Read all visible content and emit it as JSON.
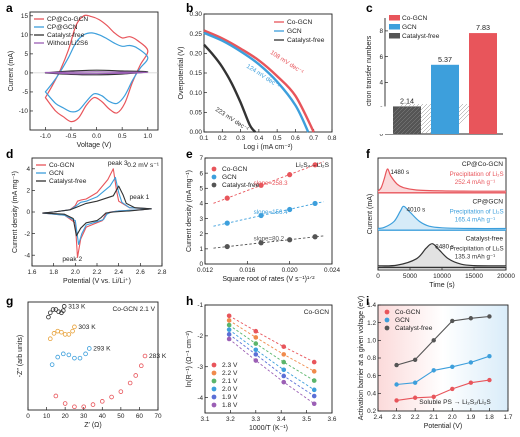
{
  "palette": {
    "red": "#e8555b",
    "blue": "#3d9fdc",
    "gray": "#555555",
    "dark": "#333333",
    "pink_fill": "#fadadb",
    "blue_fill": "#d6ebf8",
    "gray_fill": "#e2e2e2"
  },
  "chart_data": [
    {
      "panel": "a",
      "type": "line",
      "xlabel": "Voltage (V)",
      "ylabel": "Current (mA)",
      "xlim": [
        -1.3,
        1.2
      ],
      "ylim": [
        -15,
        16
      ],
      "xticks": [
        -1.0,
        -0.5,
        0.0,
        0.5,
        1.0
      ],
      "yticks": [
        -10,
        -5,
        0,
        5,
        10,
        15
      ],
      "legend_position": "top-left",
      "series": [
        {
          "name": "CP@Co-GCN",
          "color": "#e8555b",
          "closed": true,
          "x": [
            -1.0,
            -0.85,
            -0.7,
            -0.55,
            -0.4,
            -0.25,
            -0.1,
            0.05,
            0.2,
            0.35,
            0.5,
            0.65,
            0.8,
            1.0,
            0.85,
            0.7,
            0.55,
            0.4,
            0.25,
            0.1,
            -0.05,
            -0.2,
            -0.35,
            -0.5,
            -0.65,
            -0.8,
            -1.0
          ],
          "y": [
            -6.5,
            -3.0,
            1.0,
            6.0,
            12.5,
            15.0,
            14.8,
            14.0,
            12.5,
            10.5,
            9.2,
            9.5,
            8.5,
            5.8,
            2.0,
            -2.5,
            -8.0,
            -10.5,
            -9.5,
            -7.5,
            -6.5,
            -8.5,
            -11.8,
            -12.8,
            -11.5,
            -10.0,
            -6.5
          ]
        },
        {
          "name": "CP@GCN",
          "color": "#3d9fdc",
          "closed": true,
          "x": [
            -1.0,
            -0.85,
            -0.7,
            -0.55,
            -0.4,
            -0.25,
            -0.1,
            0.05,
            0.2,
            0.35,
            0.5,
            0.65,
            0.8,
            1.0,
            0.85,
            0.7,
            0.55,
            0.4,
            0.25,
            0.1,
            -0.05,
            -0.2,
            -0.35,
            -0.5,
            -0.65,
            -0.8,
            -1.0
          ],
          "y": [
            -5.0,
            -2.5,
            0.5,
            4.0,
            8.0,
            10.0,
            10.5,
            10.0,
            9.0,
            7.8,
            7.0,
            7.2,
            6.5,
            4.0,
            1.2,
            -2.0,
            -6.0,
            -8.0,
            -7.5,
            -6.0,
            -5.5,
            -7.5,
            -9.8,
            -10.2,
            -9.2,
            -8.0,
            -5.0
          ]
        },
        {
          "name": "Catalyst-free",
          "color": "#333333",
          "closed": true,
          "x": [
            -1.0,
            -0.5,
            0.0,
            0.5,
            1.0,
            0.5,
            0.0,
            -0.5,
            -1.0
          ],
          "y": [
            0.0,
            0.5,
            0.7,
            0.5,
            0.3,
            -0.3,
            -0.5,
            -0.4,
            0.0
          ]
        },
        {
          "name": "Without Li2S6",
          "color": "#9b5fb5",
          "closed": true,
          "x": [
            -1.0,
            -0.5,
            0.0,
            0.5,
            1.0,
            0.5,
            0.0,
            -0.5,
            -1.0
          ],
          "y": [
            0.1,
            0.2,
            0.3,
            0.2,
            0.1,
            -0.1,
            -0.2,
            -0.2,
            0.1
          ]
        }
      ]
    },
    {
      "panel": "b",
      "type": "line",
      "xlabel": "Log i (mA cm⁻²)",
      "ylabel": "Overpotential (V)",
      "xlim": [
        0.1,
        0.8
      ],
      "ylim": [
        0.0,
        0.3
      ],
      "xticks": [
        0.1,
        0.2,
        0.3,
        0.4,
        0.5,
        0.6,
        0.7,
        0.8
      ],
      "yticks": [
        0.0,
        0.05,
        0.1,
        0.15,
        0.2,
        0.25,
        0.3
      ],
      "legend_position": "top-right",
      "series": [
        {
          "name": "Co-GCN",
          "color": "#e8555b",
          "slope_label": "108 mV dec⁻¹",
          "x": [
            0.1,
            0.2,
            0.3,
            0.4,
            0.5,
            0.6,
            0.7
          ],
          "y": [
            0.258,
            0.238,
            0.212,
            0.182,
            0.142,
            0.092,
            0.0
          ]
        },
        {
          "name": "GCN",
          "color": "#3d9fdc",
          "slope_label": "124 mV dec⁻¹",
          "x": [
            0.1,
            0.2,
            0.3,
            0.4,
            0.5,
            0.6,
            0.67
          ],
          "y": [
            0.252,
            0.232,
            0.205,
            0.172,
            0.128,
            0.068,
            0.0
          ]
        },
        {
          "name": "Catalyst-free",
          "color": "#333333",
          "slope_label": "223 mV dec⁻¹",
          "x": [
            0.1,
            0.15,
            0.2,
            0.25,
            0.3,
            0.35,
            0.38
          ],
          "y": [
            0.222,
            0.196,
            0.165,
            0.125,
            0.075,
            0.018,
            0.0
          ]
        }
      ]
    },
    {
      "panel": "c",
      "type": "bar",
      "ylabel": "Electron transfer numbers",
      "ylim": [
        0,
        9
      ],
      "yticks": [
        0,
        2,
        4,
        6,
        8
      ],
      "legend_position": "top-left",
      "categories": [
        "Catalyst-free",
        "GCN",
        "Co-GCN"
      ],
      "values": [
        2.14,
        5.37,
        7.83
      ],
      "value_labels": [
        "2.14",
        "5.37",
        "7.83"
      ],
      "colors": [
        "#555555",
        "#3d9fdc",
        "#e8555b"
      ],
      "legend_order": [
        "Co-GCN",
        "GCN",
        "Catalyst-free"
      ]
    },
    {
      "panel": "d",
      "type": "line",
      "xlabel": "Potential (V vs. Li/Li⁺)",
      "ylabel": "Current density (mA mg⁻¹)",
      "xlim": [
        1.6,
        2.8
      ],
      "ylim": [
        -5,
        5
      ],
      "xticks": [
        1.6,
        1.8,
        2.0,
        2.2,
        2.4,
        2.6,
        2.8
      ],
      "yticks": [
        -4,
        -2,
        0,
        2,
        4
      ],
      "legend_position": "top-left",
      "scan_rate_label": "0.2 mV s⁻¹",
      "annotations": [
        "peak 3",
        "peak 1",
        "peak 2"
      ],
      "series": [
        {
          "name": "Co-GCN",
          "color": "#e8555b",
          "closed": true,
          "x": [
            1.7,
            1.9,
            2.0,
            2.02,
            2.05,
            2.1,
            2.2,
            2.25,
            2.28,
            2.32,
            2.4,
            2.6,
            2.7,
            2.5,
            2.4,
            2.38,
            2.35,
            2.3,
            2.2,
            2.1,
            2.05,
            2.02,
            2.0,
            1.95,
            1.8,
            1.7
          ],
          "y": [
            -0.1,
            -0.3,
            -1.0,
            -4.2,
            -2.5,
            -1.4,
            -1.0,
            -0.8,
            -0.2,
            0.0,
            0.1,
            0.2,
            0.3,
            0.4,
            1.0,
            2.0,
            4.0,
            3.0,
            1.8,
            1.2,
            1.1,
            1.0,
            0.6,
            0.2,
            0.0,
            -0.1
          ]
        },
        {
          "name": "GCN",
          "color": "#3d9fdc",
          "closed": true,
          "x": [
            1.7,
            1.9,
            2.0,
            2.03,
            2.06,
            2.1,
            2.2,
            2.26,
            2.29,
            2.33,
            2.4,
            2.6,
            2.7,
            2.5,
            2.43,
            2.4,
            2.37,
            2.32,
            2.2,
            2.1,
            2.05,
            2.0,
            1.95,
            1.8,
            1.7
          ],
          "y": [
            -0.1,
            -0.3,
            -0.8,
            -3.0,
            -2.0,
            -1.2,
            -0.9,
            -0.7,
            -0.2,
            0.0,
            0.1,
            0.2,
            0.3,
            0.4,
            0.9,
            1.8,
            3.2,
            2.4,
            1.4,
            1.0,
            0.9,
            0.5,
            0.2,
            0.0,
            -0.1
          ]
        },
        {
          "name": "Catalyst-free",
          "color": "#333333",
          "closed": true,
          "x": [
            1.7,
            1.9,
            1.98,
            2.01,
            2.05,
            2.1,
            2.2,
            2.24,
            2.28,
            2.35,
            2.5,
            2.7,
            2.55,
            2.47,
            2.44,
            2.4,
            2.35,
            2.2,
            2.1,
            2.0,
            1.95,
            1.8,
            1.7
          ],
          "y": [
            -0.1,
            -0.2,
            -0.6,
            -2.2,
            -1.5,
            -1.0,
            -0.8,
            -0.5,
            -0.1,
            0.0,
            0.1,
            0.3,
            0.4,
            0.8,
            1.6,
            2.4,
            1.5,
            1.0,
            0.8,
            0.4,
            0.2,
            0.0,
            -0.1
          ]
        }
      ]
    },
    {
      "panel": "e",
      "type": "scatter",
      "xlabel": "Square root of rates (V s⁻¹)¹ᐟ²",
      "ylabel": "Current density (mA mg⁻¹)",
      "xlim": [
        0.012,
        0.024
      ],
      "ylim": [
        0,
        7
      ],
      "xticks": [
        0.012,
        0.016,
        0.02,
        0.024
      ],
      "xticklabels": [
        "0.012",
        "0.016",
        "0.020",
        "0.024"
      ],
      "yticks": [
        0,
        1,
        2,
        3,
        4,
        5,
        6,
        7
      ],
      "legend_position": "top-left",
      "reaction_label": "Li₂S₄→Li₂S",
      "series": [
        {
          "name": "Co-GCN",
          "color": "#e8555b",
          "slope_label": "slope=258.3",
          "x": [
            0.0141,
            0.0173,
            0.02,
            0.0224
          ],
          "y": [
            4.35,
            5.2,
            5.9,
            6.55
          ]
        },
        {
          "name": "GCN",
          "color": "#3d9fdc",
          "slope_label": "slope=156.4",
          "x": [
            0.0141,
            0.0173,
            0.02,
            0.0224
          ],
          "y": [
            2.7,
            3.2,
            3.6,
            4.0
          ]
        },
        {
          "name": "Catalyst-free",
          "color": "#555555",
          "slope_label": "slope=80.2",
          "x": [
            0.0141,
            0.0173,
            0.02,
            0.0224
          ],
          "y": [
            1.15,
            1.4,
            1.6,
            1.8
          ]
        }
      ]
    },
    {
      "panel": "f",
      "type": "line",
      "xlabel": "Time (s)",
      "ylabel": "Current (mA)",
      "xlim": [
        0,
        20000
      ],
      "xticks": [
        0,
        5000,
        10000,
        15000,
        20000
      ],
      "series": [
        {
          "name": "CP@Co-GCN",
          "color": "#e8555b",
          "peak_time": "1480 s",
          "caption": "Precipitation of Li₂S",
          "capacity": "252.4 mAh g⁻¹",
          "x": [
            0,
            500,
            1000,
            1480,
            2000,
            3000,
            4000,
            6000,
            10000,
            15000,
            20000
          ],
          "y": [
            0.05,
            0.2,
            0.6,
            1.0,
            0.7,
            0.35,
            0.2,
            0.1,
            0.06,
            0.05,
            0.05
          ]
        },
        {
          "name": "CP@GCN",
          "color": "#3d9fdc",
          "peak_time": "4010 s",
          "caption": "Precipitation of Li₂S",
          "capacity": "165.4 mAh g⁻¹",
          "x": [
            0,
            1000,
            2500,
            3500,
            4010,
            5000,
            6500,
            8000,
            10000,
            15000,
            20000
          ],
          "y": [
            0.05,
            0.1,
            0.35,
            0.8,
            1.0,
            0.75,
            0.35,
            0.15,
            0.08,
            0.05,
            0.05
          ]
        },
        {
          "name": "Catalyst-free",
          "color": "#333333",
          "peak_time": "8480 s",
          "caption": "Precipitation of Li₂S",
          "capacity": "135.3 mAh g⁻¹",
          "x": [
            0,
            3000,
            6000,
            7500,
            8480,
            9500,
            11000,
            13000,
            15000,
            20000
          ],
          "y": [
            0.05,
            0.08,
            0.35,
            0.8,
            1.0,
            0.75,
            0.35,
            0.12,
            0.06,
            0.05
          ]
        }
      ]
    },
    {
      "panel": "g",
      "type": "scatter",
      "title": "Co-GCN 2.1 V",
      "xlabel": "Z′ (Ω)",
      "ylabel": "-Z″ (arb units)",
      "xlim": [
        0,
        70
      ],
      "xticks": [
        0,
        10,
        20,
        30,
        40,
        50,
        60,
        70
      ],
      "series": [
        {
          "name": "313 K",
          "color": "#333333",
          "x": [
            11,
            12,
            13.5,
            15,
            16.5,
            18,
            19,
            19.5
          ],
          "y": [
            0.86,
            0.9,
            0.93,
            0.93,
            0.91,
            0.9,
            0.92,
            0.96
          ]
        },
        {
          "name": "303 K",
          "color": "#e8a33d",
          "x": [
            12,
            14,
            16,
            18,
            20,
            22,
            24,
            25
          ],
          "y": [
            0.66,
            0.71,
            0.73,
            0.72,
            0.7,
            0.7,
            0.73,
            0.77
          ]
        },
        {
          "name": "293 K",
          "color": "#3d9fdc",
          "x": [
            13,
            16,
            19,
            22,
            25,
            28,
            31,
            33
          ],
          "y": [
            0.42,
            0.49,
            0.52,
            0.51,
            0.48,
            0.48,
            0.52,
            0.57
          ]
        },
        {
          "name": "283 K",
          "color": "#e8555b",
          "x": [
            15,
            20,
            25,
            30,
            35,
            40,
            45,
            50,
            55,
            58,
            61,
            63
          ],
          "y": [
            0.13,
            0.06,
            0.03,
            0.03,
            0.05,
            0.08,
            0.12,
            0.17,
            0.25,
            0.32,
            0.41,
            0.5
          ]
        }
      ]
    },
    {
      "panel": "h",
      "type": "scatter",
      "title": "Co-GCN",
      "xlabel": "1000/T (K⁻¹)",
      "ylabel": "ln(R⁻¹) (Ω⁻¹ cm⁻²)",
      "xlim": [
        3.1,
        3.6
      ],
      "ylim": [
        -4.5,
        -1.0
      ],
      "xticks": [
        3.1,
        3.2,
        3.3,
        3.4,
        3.5,
        3.6
      ],
      "yticks": [
        -4,
        -3,
        -2,
        -1
      ],
      "legend_position": "bottom-left",
      "x": [
        3.195,
        3.3,
        3.41,
        3.53
      ],
      "series": [
        {
          "name": "2.3 V",
          "color": "#e8555b",
          "y": [
            -1.35,
            -1.85,
            -2.35,
            -2.85
          ]
        },
        {
          "name": "2.2 V",
          "color": "#f08a4b",
          "y": [
            -1.5,
            -2.05,
            -2.6,
            -3.15
          ]
        },
        {
          "name": "2.1 V",
          "color": "#5ab56b",
          "y": [
            -1.65,
            -2.25,
            -2.85,
            -3.45
          ]
        },
        {
          "name": "2.0 V",
          "color": "#3d9fdc",
          "y": [
            -1.8,
            -2.45,
            -3.1,
            -3.75
          ]
        },
        {
          "name": "1.9 V",
          "color": "#5b6fd6",
          "y": [
            -1.95,
            -2.6,
            -3.3,
            -3.95
          ]
        },
        {
          "name": "1.8 V",
          "color": "#9b5fb5",
          "y": [
            -2.1,
            -2.8,
            -3.5,
            -4.2
          ]
        }
      ]
    },
    {
      "panel": "i",
      "type": "line",
      "xlabel": "Potential (V)",
      "ylabel": "Activation barrier at a given voltage (eV)",
      "xlim": [
        2.4,
        1.7
      ],
      "ylim": [
        0.2,
        1.4
      ],
      "xticks": [
        2.4,
        2.3,
        2.2,
        2.1,
        2.0,
        1.9,
        1.8,
        1.7
      ],
      "yticks": [
        0.2,
        0.4,
        0.6,
        0.8,
        1.0,
        1.2,
        1.4
      ],
      "legend_position": "top-left",
      "region_label": "Soluble PS → Li₂S₂/Li₂S",
      "x": [
        2.3,
        2.2,
        2.1,
        2.0,
        1.9,
        1.8
      ],
      "series": [
        {
          "name": "Co-GCN",
          "color": "#e8555b",
          "y": [
            0.32,
            0.35,
            0.36,
            0.45,
            0.52,
            0.55
          ]
        },
        {
          "name": "GCN",
          "color": "#3d9fdc",
          "y": [
            0.5,
            0.52,
            0.66,
            0.7,
            0.75,
            0.82
          ]
        },
        {
          "name": "Catalyst-free",
          "color": "#555555",
          "y": [
            0.72,
            0.78,
            1.0,
            1.22,
            1.25,
            1.27
          ]
        }
      ]
    }
  ]
}
